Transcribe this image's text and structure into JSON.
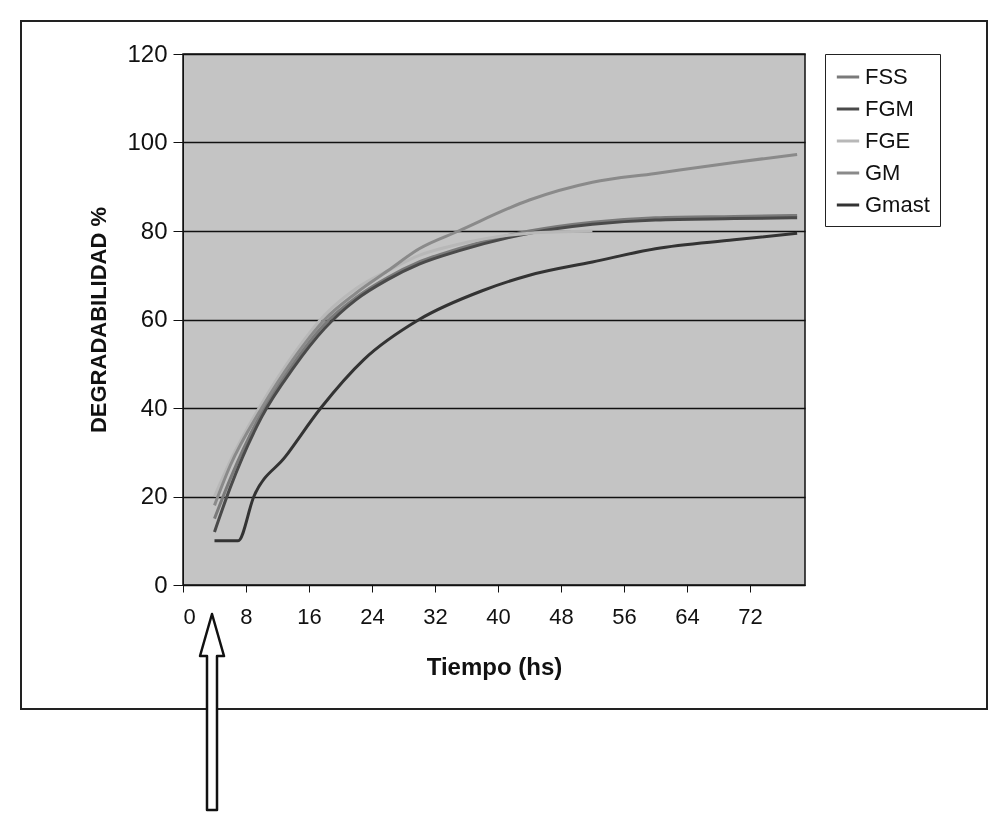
{
  "chart_data": {
    "type": "line",
    "xlabel": "Tiempo (hs)",
    "ylabel": "DEGRADABILIDAD %",
    "xlim": [
      0,
      79
    ],
    "xticks": [
      0,
      8,
      16,
      24,
      32,
      40,
      48,
      56,
      64,
      72
    ],
    "ylim": [
      0,
      120
    ],
    "yticks": [
      0,
      20,
      40,
      60,
      80,
      100,
      120
    ],
    "grid": "y",
    "legend": "right",
    "marker": "none",
    "line_style": "solid",
    "series": [
      {
        "name": "FSS",
        "color": "#7a7a7a",
        "x": [
          4,
          6,
          10,
          14,
          18,
          22,
          26,
          30,
          35,
          44,
          52,
          60,
          70,
          78
        ],
        "values": [
          15,
          24,
          39,
          50,
          59,
          65,
          69.5,
          73,
          76,
          80,
          82,
          83,
          83.3,
          83.5
        ]
      },
      {
        "name": "FGM",
        "color": "#4a4a4a",
        "x": [
          4,
          6,
          10,
          14,
          18,
          22,
          26,
          30,
          35,
          44,
          52,
          60,
          70,
          78
        ],
        "values": [
          12,
          22,
          38,
          49,
          58,
          64.5,
          69,
          72.5,
          75.5,
          79.5,
          81.5,
          82.5,
          82.8,
          83
        ]
      },
      {
        "name": "FGE",
        "color": "#b8b8b8",
        "x": [
          4,
          6,
          10,
          14,
          18,
          22,
          26,
          30,
          35,
          44,
          52
        ],
        "values": [
          20,
          28,
          41,
          52,
          61,
          67,
          71,
          74.5,
          77,
          79.5,
          80
        ]
      },
      {
        "name": "GM",
        "color": "#8a8a8a",
        "x": [
          4,
          6,
          10,
          14,
          18,
          22,
          26,
          30,
          35,
          44,
          52,
          60,
          70,
          78
        ],
        "values": [
          18,
          27,
          40,
          51,
          60,
          66,
          71,
          76,
          80,
          87,
          91,
          93,
          95.5,
          97.3
        ]
      },
      {
        "name": "Gmast",
        "color": "#333333",
        "x": [
          4,
          7,
          9,
          13,
          17.5,
          23,
          30,
          38,
          44,
          52,
          60,
          70,
          78
        ],
        "values": [
          10,
          10,
          20,
          29,
          40,
          51,
          60,
          66.5,
          70,
          73,
          76,
          78,
          79.5
        ]
      }
    ]
  }
}
